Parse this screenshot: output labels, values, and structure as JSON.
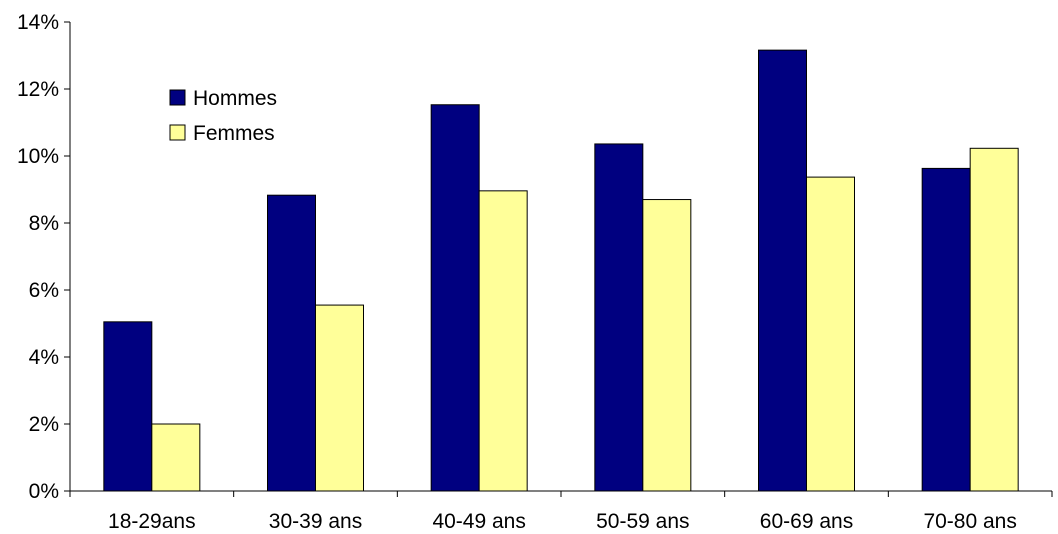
{
  "chart_data": {
    "type": "bar",
    "title": "",
    "xlabel": "",
    "ylabel": "",
    "categories": [
      "18-29ans",
      "30-39 ans",
      "40-49 ans",
      "50-59 ans",
      "60-69 ans",
      "70-80 ans"
    ],
    "series": [
      {
        "name": "Hommes",
        "color": "#000080",
        "values": [
          5.05,
          8.83,
          11.53,
          10.36,
          13.16,
          9.63
        ]
      },
      {
        "name": "Femmes",
        "color": "#FFFF99",
        "values": [
          2.0,
          5.55,
          8.96,
          8.7,
          9.37,
          10.23
        ]
      }
    ],
    "ylim": [
      0,
      14
    ],
    "yticks": [
      0,
      2,
      4,
      6,
      8,
      10,
      12,
      14
    ],
    "ytick_labels": [
      "0%",
      "2%",
      "4%",
      "6%",
      "8%",
      "10%",
      "12%",
      "14%"
    ],
    "grid": false,
    "legend_position": "top-left"
  }
}
